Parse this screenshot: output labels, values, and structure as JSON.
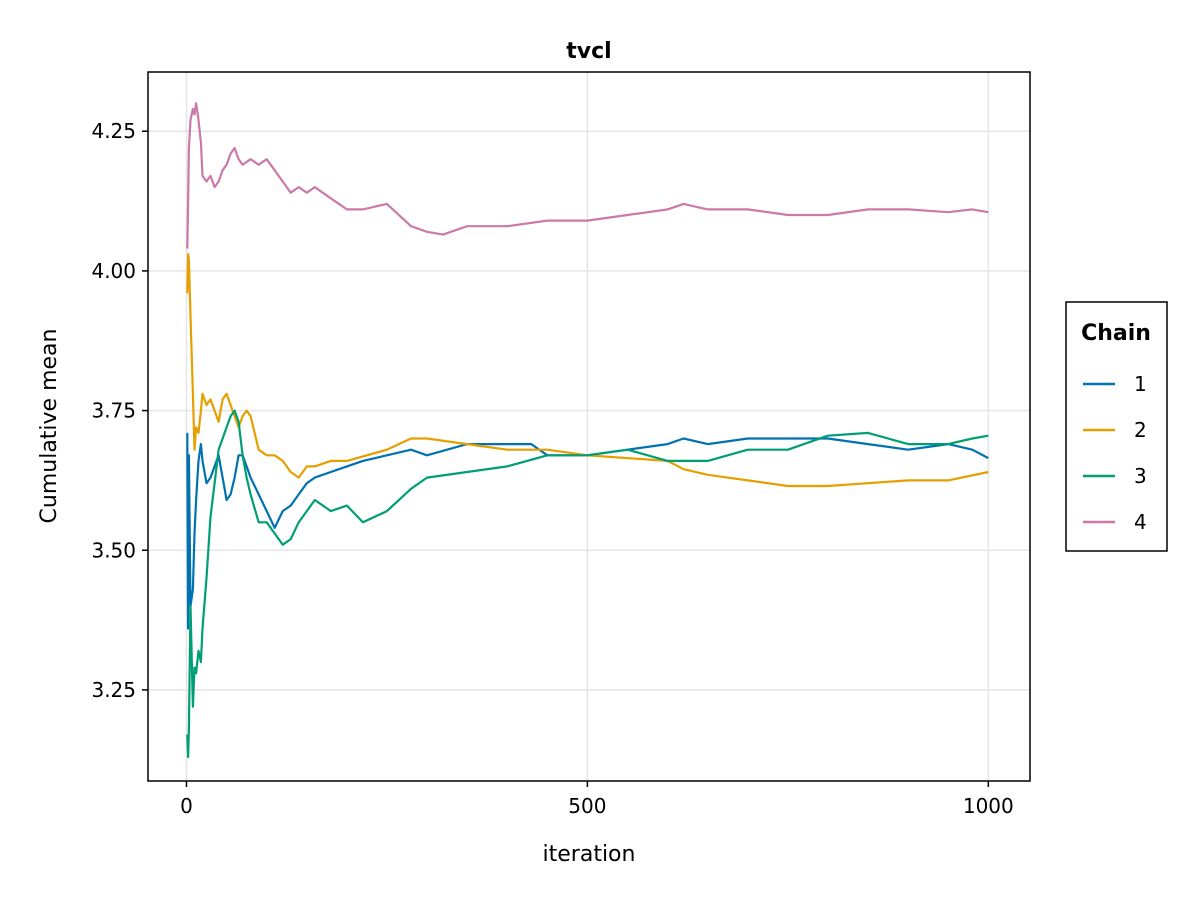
{
  "chart_data": {
    "type": "line",
    "title": "tvcl",
    "xlabel": "iteration",
    "ylabel": "Cumulative mean",
    "xlim": [
      -48,
      1052
    ],
    "ylim": [
      3.087,
      4.356
    ],
    "xticks": [
      0,
      500,
      1000
    ],
    "xtick_labels": [
      "0",
      "500",
      "1000"
    ],
    "yticks": [
      3.25,
      3.5,
      3.75,
      4.0,
      4.25
    ],
    "ytick_labels": [
      "3.25",
      "3.50",
      "3.75",
      "4.00",
      "4.25"
    ],
    "grid": true,
    "legend": {
      "title": "Chain",
      "placement": "right"
    },
    "series": [
      {
        "name": "1",
        "color": "#0072B2",
        "x": [
          1,
          2,
          3,
          5,
          8,
          10,
          12,
          15,
          18,
          20,
          25,
          30,
          35,
          40,
          45,
          50,
          55,
          60,
          65,
          70,
          75,
          80,
          90,
          100,
          110,
          120,
          130,
          140,
          150,
          160,
          180,
          200,
          220,
          250,
          280,
          300,
          350,
          400,
          430,
          450,
          500,
          550,
          600,
          620,
          650,
          700,
          750,
          800,
          850,
          900,
          950,
          980,
          1000
        ],
        "y": [
          3.71,
          3.36,
          3.67,
          3.4,
          3.43,
          3.53,
          3.59,
          3.66,
          3.69,
          3.66,
          3.62,
          3.63,
          3.65,
          3.67,
          3.63,
          3.59,
          3.6,
          3.63,
          3.67,
          3.67,
          3.65,
          3.63,
          3.6,
          3.57,
          3.54,
          3.57,
          3.58,
          3.6,
          3.62,
          3.63,
          3.64,
          3.65,
          3.66,
          3.67,
          3.68,
          3.67,
          3.69,
          3.69,
          3.69,
          3.67,
          3.67,
          3.68,
          3.69,
          3.7,
          3.69,
          3.7,
          3.7,
          3.7,
          3.69,
          3.68,
          3.69,
          3.68,
          3.665
        ]
      },
      {
        "name": "2",
        "color": "#E69F00",
        "x": [
          1,
          2,
          3,
          5,
          8,
          10,
          12,
          15,
          18,
          20,
          25,
          30,
          35,
          40,
          45,
          50,
          55,
          60,
          65,
          70,
          75,
          80,
          90,
          100,
          110,
          120,
          130,
          140,
          150,
          160,
          180,
          200,
          250,
          280,
          300,
          350,
          400,
          450,
          500,
          550,
          600,
          620,
          650,
          700,
          750,
          800,
          850,
          900,
          950,
          1000
        ],
        "y": [
          3.96,
          4.03,
          4.02,
          3.92,
          3.78,
          3.68,
          3.72,
          3.71,
          3.75,
          3.78,
          3.76,
          3.77,
          3.75,
          3.73,
          3.77,
          3.78,
          3.76,
          3.74,
          3.72,
          3.74,
          3.75,
          3.74,
          3.68,
          3.67,
          3.67,
          3.66,
          3.64,
          3.63,
          3.65,
          3.65,
          3.66,
          3.66,
          3.68,
          3.7,
          3.7,
          3.69,
          3.68,
          3.68,
          3.67,
          3.665,
          3.66,
          3.645,
          3.635,
          3.625,
          3.615,
          3.615,
          3.62,
          3.625,
          3.625,
          3.64
        ]
      },
      {
        "name": "3",
        "color": "#009E73",
        "x": [
          1,
          2,
          3,
          5,
          8,
          10,
          12,
          15,
          18,
          20,
          25,
          30,
          35,
          40,
          45,
          50,
          55,
          60,
          65,
          70,
          75,
          80,
          90,
          100,
          110,
          120,
          130,
          140,
          150,
          160,
          180,
          200,
          220,
          250,
          280,
          300,
          350,
          400,
          450,
          500,
          550,
          600,
          620,
          650,
          700,
          750,
          800,
          850,
          900,
          950,
          980,
          1000
        ],
        "y": [
          3.17,
          3.13,
          3.18,
          3.4,
          3.22,
          3.29,
          3.28,
          3.32,
          3.3,
          3.36,
          3.45,
          3.56,
          3.62,
          3.68,
          3.7,
          3.72,
          3.74,
          3.75,
          3.73,
          3.67,
          3.63,
          3.6,
          3.55,
          3.55,
          3.53,
          3.51,
          3.52,
          3.55,
          3.57,
          3.59,
          3.57,
          3.58,
          3.55,
          3.57,
          3.61,
          3.63,
          3.64,
          3.65,
          3.67,
          3.67,
          3.68,
          3.66,
          3.66,
          3.66,
          3.68,
          3.68,
          3.705,
          3.71,
          3.69,
          3.69,
          3.7,
          3.705
        ]
      },
      {
        "name": "4",
        "color": "#CC79A7",
        "x": [
          1,
          2,
          3,
          5,
          8,
          10,
          12,
          15,
          18,
          20,
          25,
          30,
          35,
          40,
          45,
          50,
          55,
          60,
          65,
          70,
          80,
          90,
          100,
          110,
          120,
          130,
          140,
          150,
          160,
          180,
          200,
          220,
          250,
          280,
          300,
          320,
          350,
          400,
          450,
          500,
          550,
          600,
          620,
          650,
          700,
          750,
          800,
          850,
          900,
          950,
          980,
          1000
        ],
        "y": [
          4.04,
          4.12,
          4.22,
          4.27,
          4.29,
          4.28,
          4.3,
          4.27,
          4.23,
          4.17,
          4.16,
          4.17,
          4.15,
          4.16,
          4.18,
          4.19,
          4.21,
          4.22,
          4.2,
          4.19,
          4.2,
          4.19,
          4.2,
          4.18,
          4.16,
          4.14,
          4.15,
          4.14,
          4.15,
          4.13,
          4.11,
          4.11,
          4.12,
          4.08,
          4.07,
          4.065,
          4.08,
          4.08,
          4.09,
          4.09,
          4.1,
          4.11,
          4.12,
          4.11,
          4.11,
          4.1,
          4.1,
          4.11,
          4.11,
          4.105,
          4.11,
          4.105
        ]
      }
    ]
  }
}
